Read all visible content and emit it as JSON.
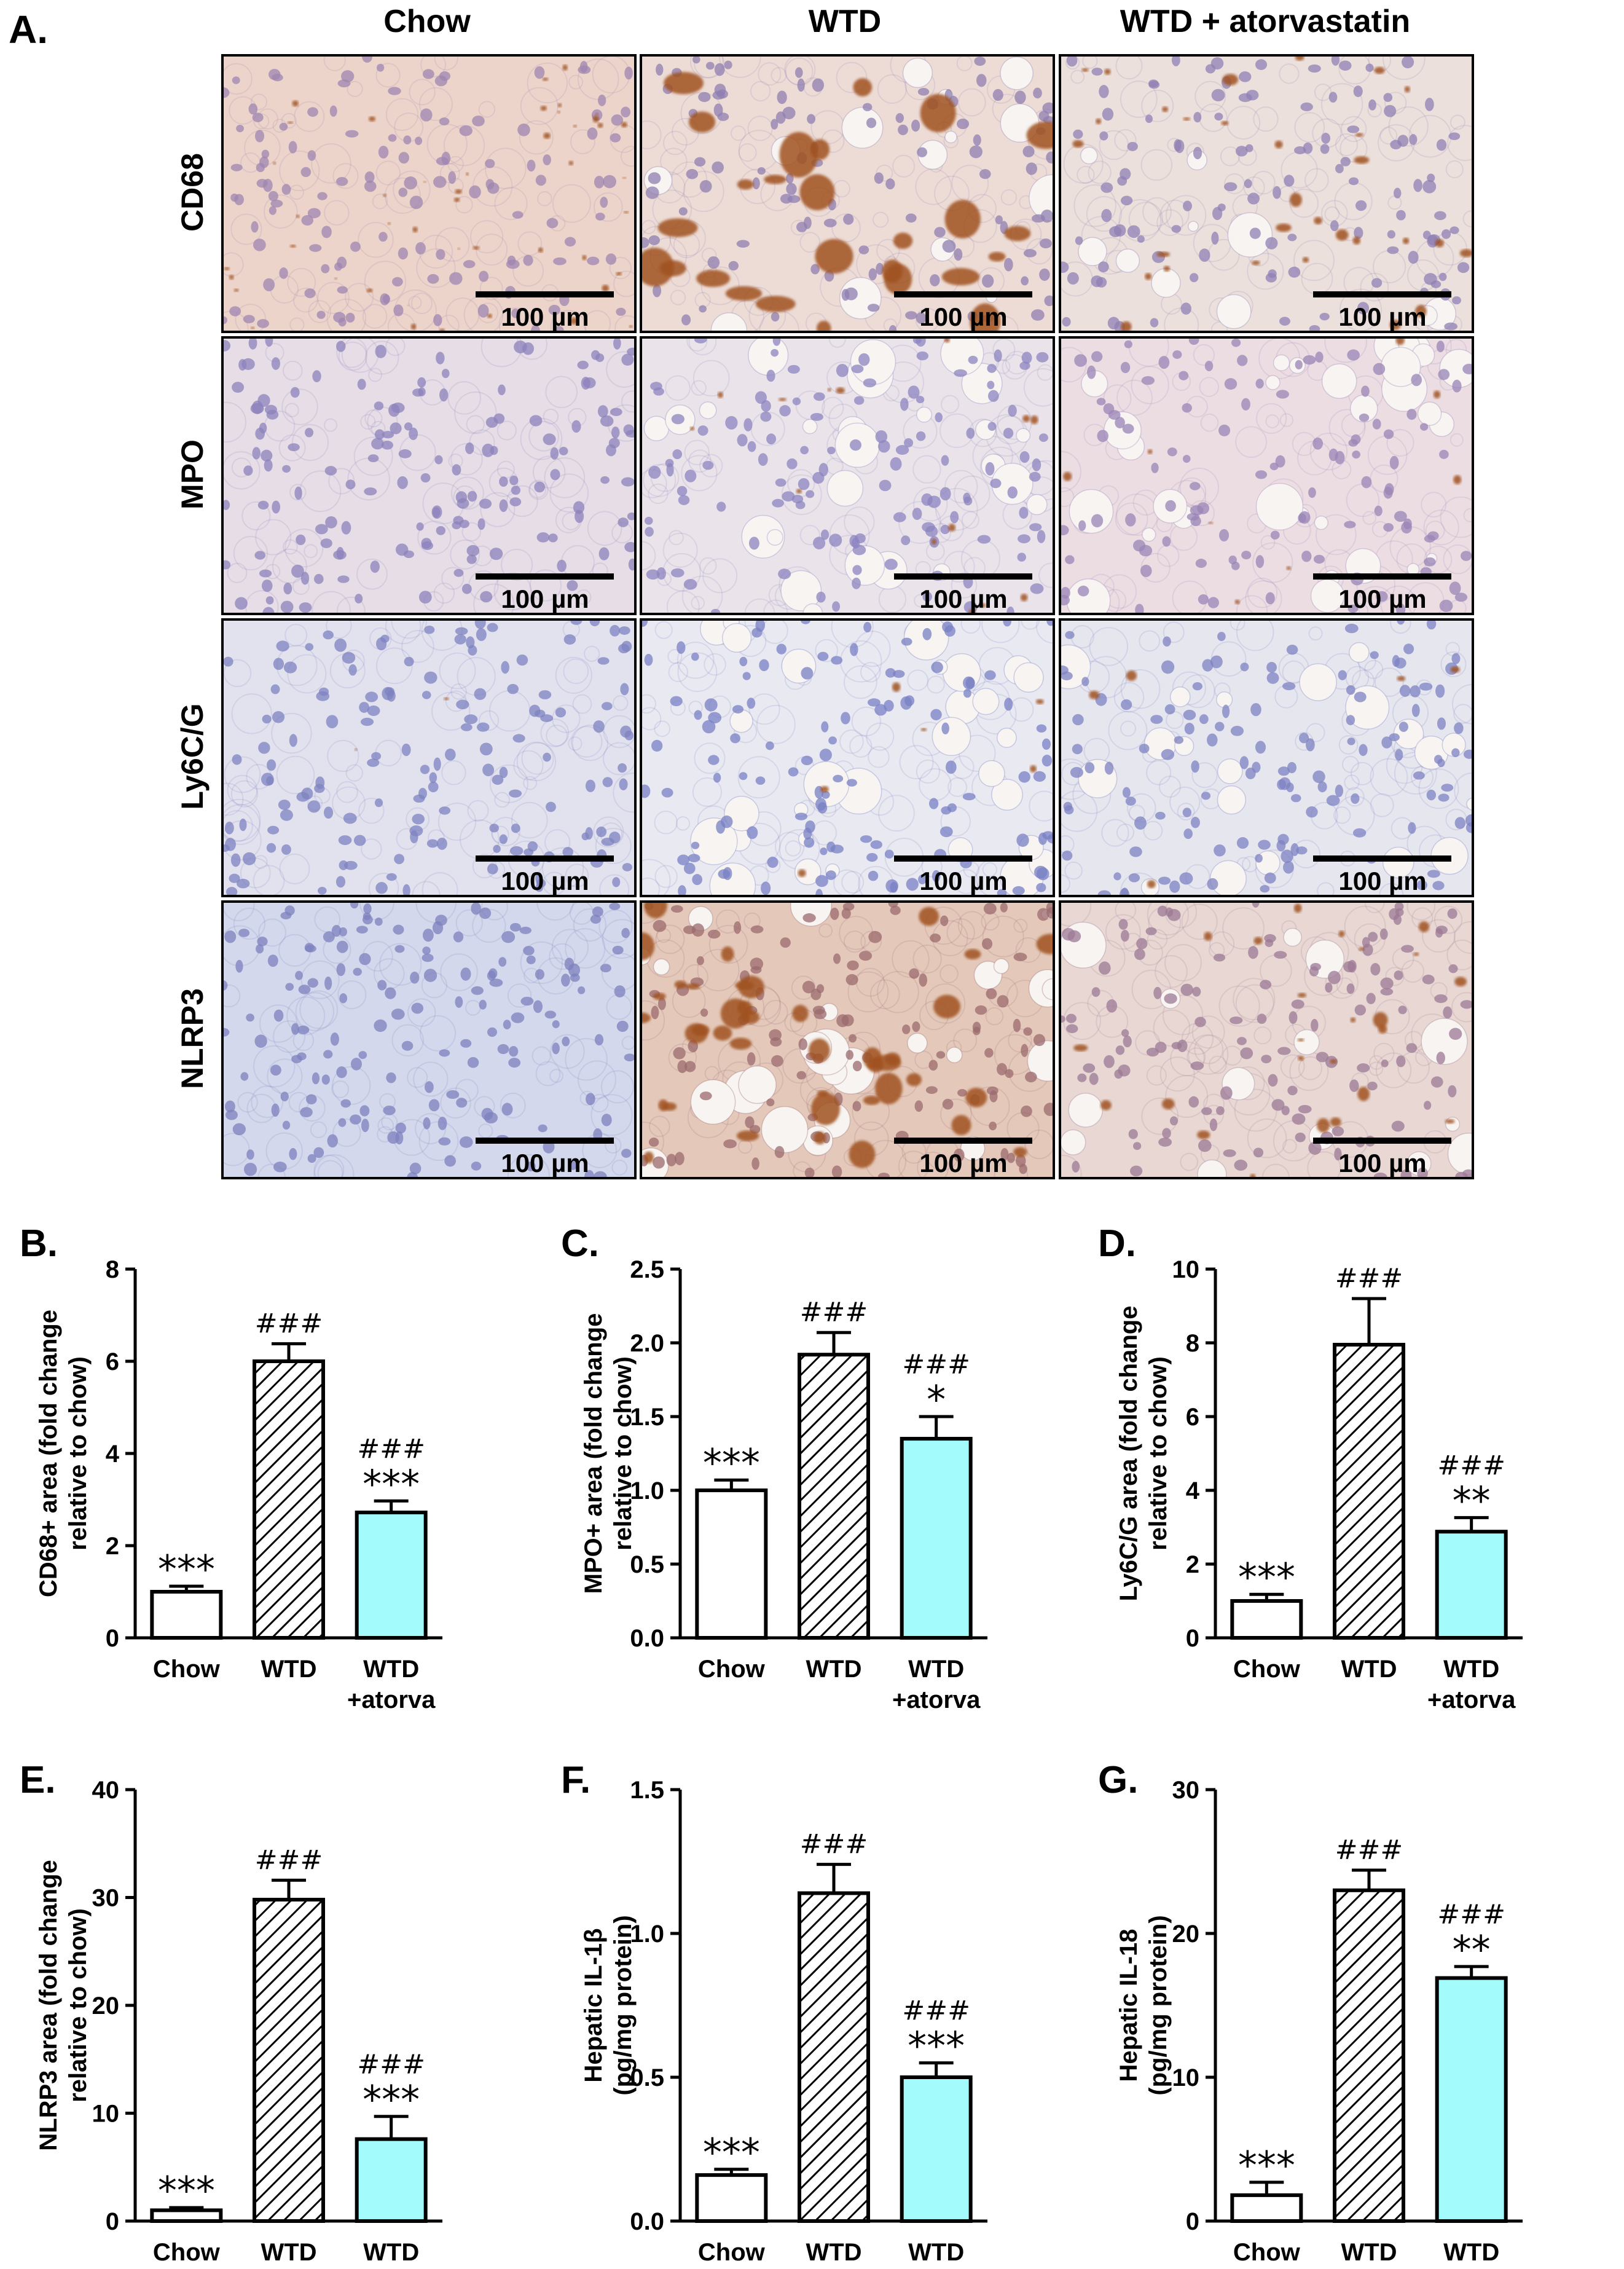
{
  "panel_a": {
    "label": "A.",
    "columns": [
      "Chow",
      "WTD",
      "WTD + atorvastatin"
    ],
    "rows": [
      "CD68",
      "MPO",
      "Ly6C/G",
      "NLRP3"
    ],
    "scale_bar_label": "100 µm",
    "stain_colors": {
      "background_pink": "#ecd8d3",
      "hematoxylin": "#8d80b8",
      "dab": "#a0521f",
      "lipid": "#f7f4f2",
      "blue_bg": "#d9dbee"
    }
  },
  "colors": {
    "chow": "#ffffff",
    "wtd_hatch": "#000000",
    "atorva": "#a4fbfb",
    "stroke": "#000000"
  },
  "chart_data": [
    {
      "id": "B",
      "label": "B.",
      "type": "bar",
      "categories": [
        "Chow",
        "WTD",
        "WTD +atorva"
      ],
      "values": [
        1.0,
        6.0,
        2.72
      ],
      "errors": [
        0.12,
        0.38,
        0.25
      ],
      "ylabel": "CD68+ area (fold change relative to chow)",
      "ylabel_lines": [
        "CD68+ area (fold change",
        "relative to chow)"
      ],
      "ylim": [
        0,
        8
      ],
      "yticks": [
        "0",
        "2",
        "4",
        "6",
        "8"
      ],
      "annotations": [
        [
          "***"
        ],
        [
          "###"
        ],
        [
          "###",
          "***"
        ]
      ]
    },
    {
      "id": "C",
      "label": "C.",
      "type": "bar",
      "categories": [
        "Chow",
        "WTD",
        "WTD +atorva"
      ],
      "values": [
        1.0,
        1.92,
        1.35
      ],
      "errors": [
        0.07,
        0.15,
        0.15
      ],
      "ylabel": "MPO+ area (fold change relative to chow)",
      "ylabel_lines": [
        "MPO+ area (fold change",
        "relative to chow)"
      ],
      "ylim": [
        0,
        2.5
      ],
      "yticks": [
        "0.0",
        "0.5",
        "1.0",
        "1.5",
        "2.0",
        "2.5"
      ],
      "annotations": [
        [
          "***"
        ],
        [
          "###"
        ],
        [
          "###",
          "*"
        ]
      ]
    },
    {
      "id": "D",
      "label": "D.",
      "type": "bar",
      "categories": [
        "Chow",
        "WTD",
        "WTD +atorva"
      ],
      "values": [
        1.0,
        7.95,
        2.88
      ],
      "errors": [
        0.18,
        1.25,
        0.38
      ],
      "ylabel": "Ly6C/G area (fold change relative to chow)",
      "ylabel_lines": [
        "Ly6C/G area (fold change",
        "relative to chow)"
      ],
      "ylim": [
        0,
        10
      ],
      "yticks": [
        "0",
        "2",
        "4",
        "6",
        "8",
        "10"
      ],
      "annotations": [
        [
          "***"
        ],
        [
          "###"
        ],
        [
          "###",
          "**"
        ]
      ]
    },
    {
      "id": "E",
      "label": "E.",
      "type": "bar",
      "categories": [
        "Chow",
        "WTD",
        "WTD +atorva"
      ],
      "values": [
        1.0,
        29.8,
        7.6
      ],
      "errors": [
        0.25,
        1.8,
        2.1
      ],
      "ylabel": "NLRP3 area (fold change relative to chow)",
      "ylabel_lines": [
        "NLRP3 area (fold change",
        "relative to chow)"
      ],
      "ylim": [
        0,
        40
      ],
      "yticks": [
        "0",
        "10",
        "20",
        "30",
        "40"
      ],
      "annotations": [
        [
          "***"
        ],
        [
          "###"
        ],
        [
          "###",
          "***"
        ]
      ]
    },
    {
      "id": "F",
      "label": "F.",
      "type": "bar",
      "categories": [
        "Chow",
        "WTD",
        "WTD +atorva"
      ],
      "values": [
        0.16,
        1.14,
        0.5
      ],
      "errors": [
        0.02,
        0.1,
        0.05
      ],
      "ylabel": "Hepatic IL-1β (pg/mg protein)",
      "ylabel_lines": [
        "Hepatic IL-1β",
        "(pg/mg protein)"
      ],
      "ylim": [
        0,
        1.5
      ],
      "yticks": [
        "0.0",
        "0.5",
        "1.0",
        "1.5"
      ],
      "annotations": [
        [
          "***"
        ],
        [
          "###"
        ],
        [
          "###",
          "***"
        ]
      ]
    },
    {
      "id": "G",
      "label": "G.",
      "type": "bar",
      "categories": [
        "Chow",
        "WTD",
        "WTD +atorva"
      ],
      "values": [
        1.8,
        23.0,
        16.9
      ],
      "errors": [
        0.9,
        1.4,
        0.8
      ],
      "ylabel": "Hepatic IL-18 (pg/mg protein)",
      "ylabel_lines": [
        "Hepatic IL-18",
        "(pg/mg protein)"
      ],
      "ylim": [
        0,
        30
      ],
      "yticks": [
        "0",
        "10",
        "20",
        "30"
      ],
      "annotations": [
        [
          "***"
        ],
        [
          "###"
        ],
        [
          "###",
          "**"
        ]
      ]
    }
  ]
}
